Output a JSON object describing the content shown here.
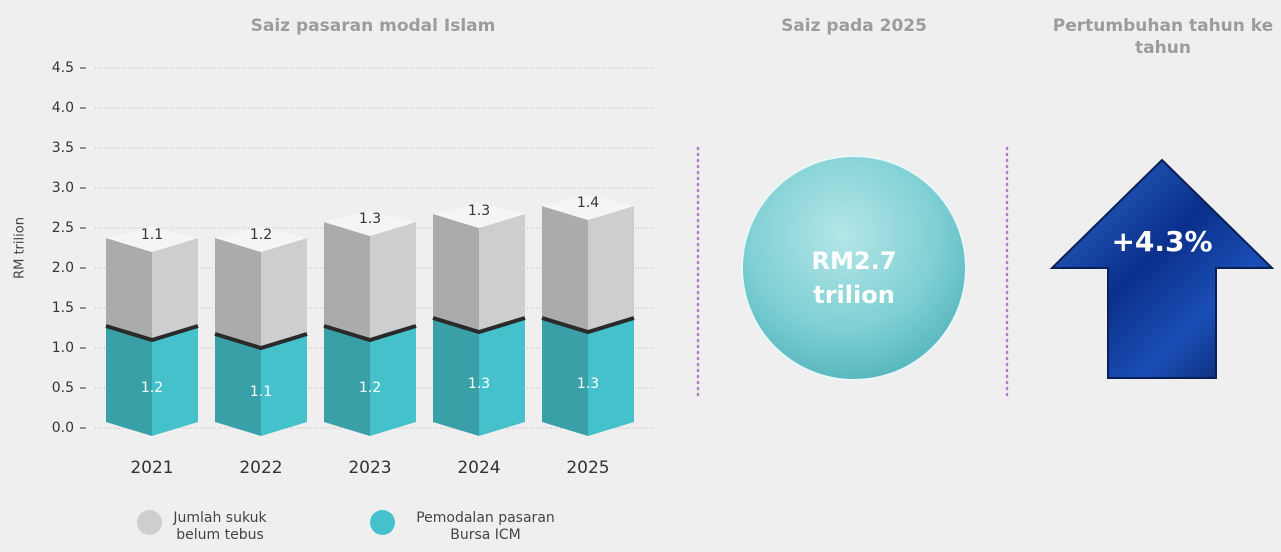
{
  "chart_data": {
    "type": "bar",
    "stacked": true,
    "title": "Saiz pasaran modal Islam",
    "ylabel": "RM trilion",
    "categories": [
      "2021",
      "2022",
      "2023",
      "2024",
      "2025"
    ],
    "series": [
      {
        "name": "Pemodalan pasaran Bursa ICM",
        "color": "#45c1cb",
        "values": [
          1.2,
          1.1,
          1.2,
          1.3,
          1.3
        ]
      },
      {
        "name": "Jumlah sukuk belum tebus",
        "color": "#cdcecf",
        "values": [
          1.1,
          1.2,
          1.3,
          1.3,
          1.4
        ]
      }
    ],
    "ylim": [
      0,
      4.5
    ],
    "yticks": [
      {
        "value": 0,
        "label": "0.0"
      },
      0.5,
      {
        "value": 1,
        "label": "1.0"
      },
      1.5,
      {
        "value": 2,
        "label": "2.0"
      },
      2.5,
      {
        "value": 3,
        "label": "3.0"
      },
      3.5,
      {
        "value": 4,
        "label": "4.0"
      },
      4.5
    ],
    "grid": true
  },
  "size_panel": {
    "title": "Saiz pada 2025",
    "value_lines": [
      "RM2.7",
      "trilion"
    ]
  },
  "growth_panel": {
    "title": "Pertumbuhan tahun ke tahun",
    "value": "+4.3%"
  }
}
